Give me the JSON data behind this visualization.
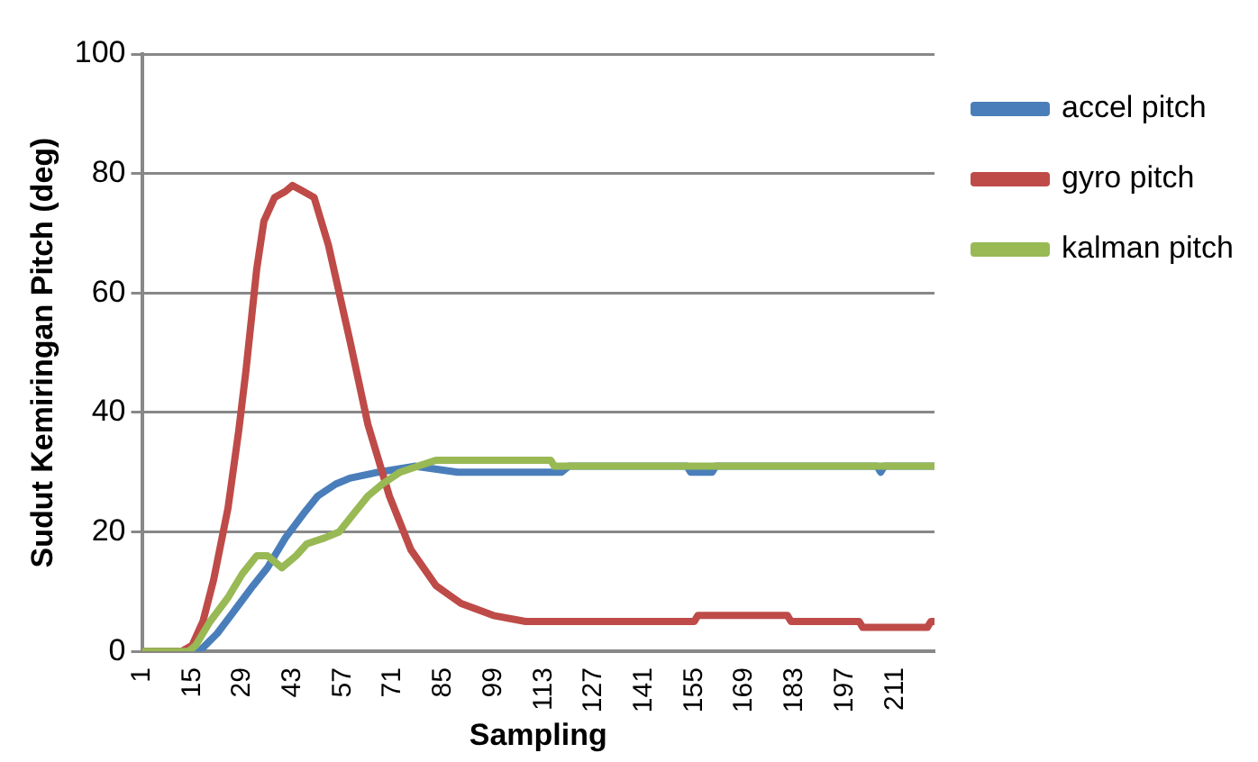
{
  "chart_data": {
    "type": "line",
    "xlabel": "Sampling",
    "ylabel": "Sudut Kemiringan Pitch (deg)",
    "xlim": [
      1,
      222
    ],
    "xticks": [
      1,
      15,
      29,
      43,
      57,
      71,
      85,
      99,
      113,
      127,
      141,
      155,
      169,
      183,
      197,
      211
    ],
    "ylim": [
      0,
      100
    ],
    "yticks": [
      0,
      20,
      40,
      60,
      80,
      100
    ],
    "grid": "y",
    "legend": "right",
    "marker": "none",
    "line_style": "solid",
    "series": [
      {
        "name": "accel pitch",
        "color": "#4a7ebb",
        "x": [
          1,
          17,
          22,
          27,
          32,
          36,
          41,
          46,
          50,
          55,
          59,
          67,
          77,
          89,
          118,
          120,
          153,
          154,
          160,
          161,
          206,
          207,
          208,
          222
        ],
        "values": [
          0,
          0,
          3,
          7,
          11,
          14,
          19,
          23,
          26,
          28,
          29,
          30,
          31,
          30,
          30,
          31,
          31,
          30,
          30,
          31,
          31,
          30,
          31,
          31
        ]
      },
      {
        "name": "gyro pitch",
        "color": "#be4b48",
        "x": [
          1,
          12,
          15,
          18,
          21,
          25,
          28,
          30,
          33,
          35,
          38,
          41,
          43,
          46,
          49,
          53,
          59,
          64,
          70,
          76,
          83,
          90,
          99,
          108,
          155,
          156,
          181,
          182,
          201,
          202,
          220,
          221,
          222
        ],
        "values": [
          0,
          0,
          1,
          5,
          12,
          24,
          37,
          47,
          64,
          72,
          76,
          77,
          78,
          77,
          76,
          68,
          52,
          38,
          26,
          17,
          11,
          8,
          6,
          5,
          5,
          6,
          6,
          5,
          5,
          4,
          4,
          5,
          5
        ]
      },
      {
        "name": "kalman pitch",
        "color": "#98b954",
        "x": [
          1,
          14,
          16,
          20,
          25,
          29,
          33,
          36,
          40,
          44,
          47,
          52,
          56,
          60,
          64,
          68,
          73,
          78,
          83,
          115,
          116,
          222
        ],
        "values": [
          0,
          0,
          1,
          5,
          9,
          13,
          16,
          16,
          14,
          16,
          18,
          19,
          20,
          23,
          26,
          28,
          30,
          31,
          32,
          32,
          31,
          31
        ]
      }
    ]
  }
}
